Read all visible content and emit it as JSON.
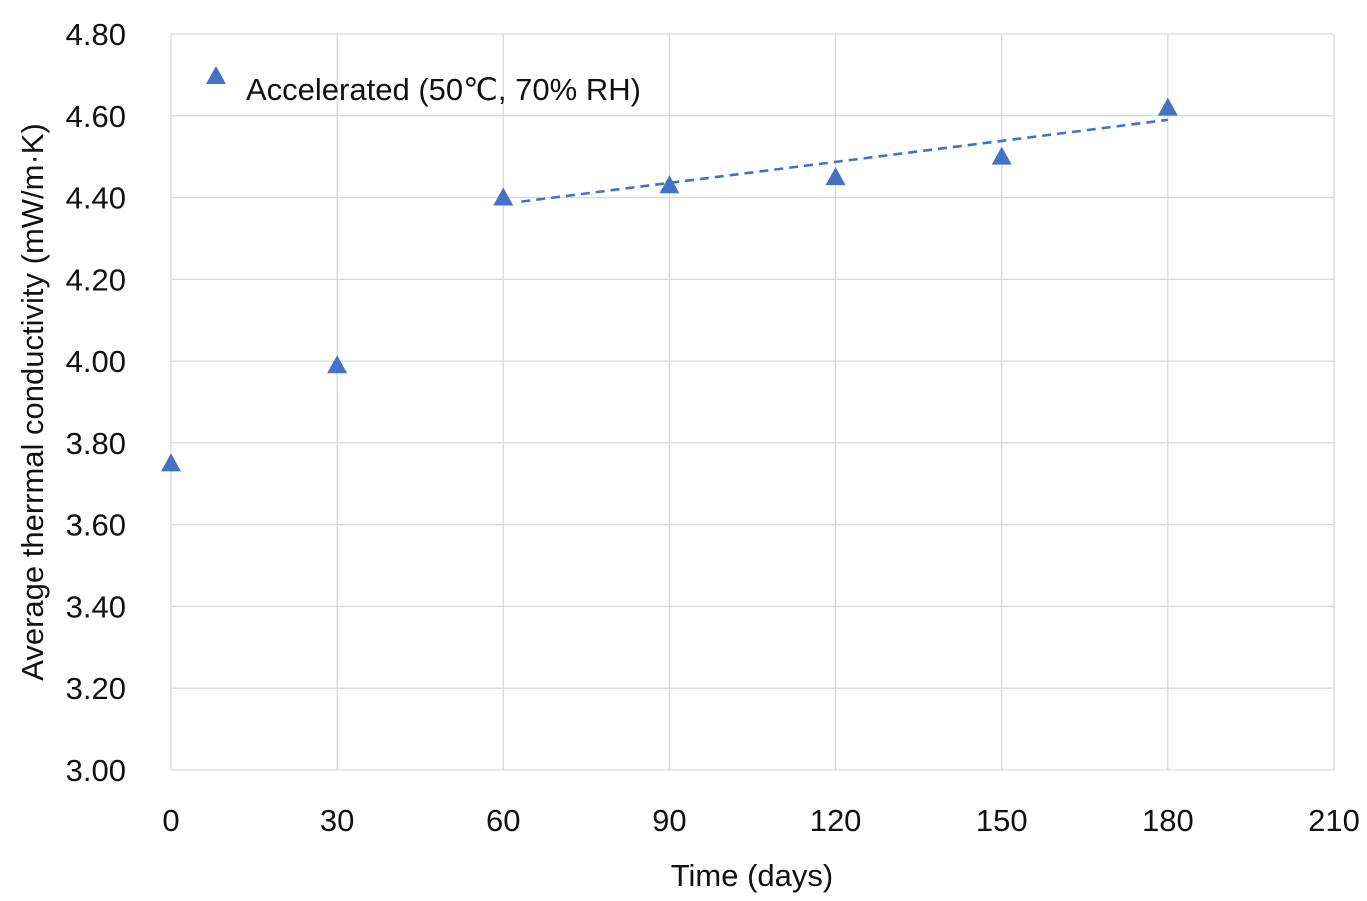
{
  "chart_data": {
    "type": "scatter",
    "title": "",
    "xlabel": "Time (days)",
    "ylabel": "Average therrmal conductivity (mW/m·K)",
    "xlim": [
      0,
      210
    ],
    "ylim": [
      3.0,
      4.8
    ],
    "x_ticks": [
      "0",
      "30",
      "60",
      "90",
      "120",
      "150",
      "180",
      "210"
    ],
    "y_ticks": [
      "3.00",
      "3.20",
      "3.40",
      "3.60",
      "3.80",
      "4.00",
      "4.20",
      "4.40",
      "4.60",
      "4.80"
    ],
    "grid": true,
    "legend_position": "top-left",
    "series": [
      {
        "name": "Accelerated  (50℃, 70% RH)",
        "marker": "triangle",
        "color": "#4472C4",
        "x": [
          0,
          30,
          60,
          90,
          120,
          150,
          180
        ],
        "y": [
          3.75,
          3.99,
          4.4,
          4.43,
          4.45,
          4.5,
          4.62
        ]
      }
    ],
    "trendline": {
      "style": "dashed",
      "color": "#4472C4",
      "x": [
        60,
        180
      ],
      "y": [
        4.39,
        4.59
      ]
    }
  }
}
